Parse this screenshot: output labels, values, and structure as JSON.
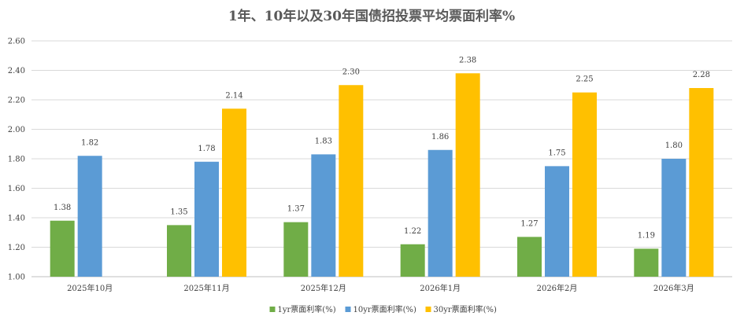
{
  "chart_data": {
    "type": "bar",
    "title": "1年、10年以及30年国债招投票平均票面利率%",
    "categories": [
      "2025年10月",
      "2025年11月",
      "2025年12月",
      "2026年1月",
      "2026年2月",
      "2026年3月"
    ],
    "series": [
      {
        "name": "1yr票面利率(%)",
        "color": "#70ad47",
        "values": [
          1.38,
          1.35,
          1.37,
          1.22,
          1.27,
          1.19
        ],
        "labels": [
          "1.38",
          "1.35",
          "1.37",
          "1.22",
          "1.27",
          "1.19"
        ]
      },
      {
        "name": "10yr票面利率(%)",
        "color": "#5b9bd5",
        "values": [
          1.82,
          1.78,
          1.83,
          1.86,
          1.75,
          1.8
        ],
        "labels": [
          "1.82",
          "1.78",
          "1.83",
          "1.86",
          "1.75",
          "1.80"
        ]
      },
      {
        "name": "30yr票面利率(%)",
        "color": "#ffc000",
        "values": [
          null,
          2.14,
          2.3,
          2.38,
          2.25,
          2.28
        ],
        "labels": [
          null,
          "2.14",
          "2.30",
          "2.38",
          "2.25",
          "2.28"
        ]
      }
    ],
    "ylim": [
      1.0,
      2.6
    ],
    "yticks": [
      "1.00",
      "1.20",
      "1.40",
      "1.60",
      "1.80",
      "2.00",
      "2.20",
      "2.40",
      "2.60"
    ],
    "grid": true,
    "legend_position": "bottom"
  }
}
